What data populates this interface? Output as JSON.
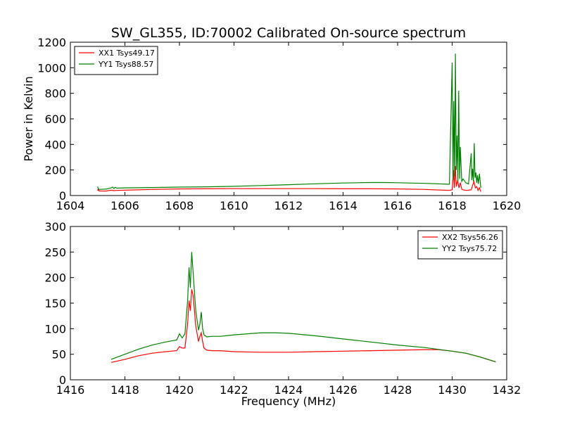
{
  "chart_data": [
    {
      "type": "line",
      "title": "SW_GL355, ID:70002 Calibrated On-source spectrum",
      "xlabel": "",
      "ylabel": "Power in Kelvin",
      "xlim": [
        1604,
        1620
      ],
      "ylim": [
        0,
        1200
      ],
      "xticks": [
        1604,
        1606,
        1608,
        1610,
        1612,
        1614,
        1616,
        1618,
        1620
      ],
      "yticks": [
        0,
        200,
        400,
        600,
        800,
        1000,
        1200
      ],
      "legend_position": "top-left",
      "grid": false,
      "series": [
        {
          "name": "XX1 Tsys49.17",
          "color": "#ff0000",
          "x": [
            1605.0,
            1605.02,
            1605.05,
            1605.3,
            1605.5,
            1605.6,
            1605.7,
            1606,
            1607,
            1608,
            1609,
            1610,
            1611,
            1612,
            1613,
            1614,
            1615,
            1616,
            1617,
            1617.9,
            1618.0,
            1618.05,
            1618.08,
            1618.12,
            1618.15,
            1618.2,
            1618.25,
            1618.3,
            1618.35,
            1618.4,
            1618.5,
            1618.6,
            1618.7,
            1618.75,
            1618.8,
            1618.85,
            1618.9,
            1618.95,
            1619.0,
            1619.05
          ],
          "y": [
            38,
            52,
            36,
            35,
            42,
            38,
            40,
            42,
            48,
            52,
            53,
            54,
            54,
            54,
            54,
            53,
            53,
            52,
            48,
            40,
            45,
            200,
            60,
            230,
            70,
            120,
            60,
            100,
            50,
            45,
            40,
            42,
            45,
            80,
            110,
            60,
            70,
            40,
            60,
            30
          ]
        },
        {
          "name": "YY1 Tsys88.57",
          "color": "#008000",
          "x": [
            1605.0,
            1605.02,
            1605.05,
            1605.3,
            1605.5,
            1605.55,
            1605.6,
            1605.65,
            1605.7,
            1606,
            1607,
            1608,
            1609,
            1610,
            1611,
            1612,
            1613,
            1614,
            1615,
            1615.5,
            1616,
            1617,
            1617.9,
            1618.0,
            1618.03,
            1618.06,
            1618.09,
            1618.12,
            1618.15,
            1618.18,
            1618.21,
            1618.24,
            1618.27,
            1618.3,
            1618.35,
            1618.4,
            1618.5,
            1618.6,
            1618.7,
            1618.72,
            1618.75,
            1618.78,
            1618.81,
            1618.84,
            1618.87,
            1618.9,
            1618.93,
            1618.96,
            1619.0,
            1619.05
          ],
          "y": [
            70,
            55,
            48,
            50,
            60,
            66,
            55,
            64,
            58,
            60,
            63,
            66,
            68,
            72,
            78,
            85,
            92,
            98,
            102,
            102,
            100,
            95,
            88,
            1040,
            120,
            740,
            150,
            1110,
            200,
            470,
            110,
            820,
            130,
            380,
            110,
            130,
            100,
            90,
            330,
            120,
            210,
            110,
            410,
            140,
            180,
            100,
            160,
            90,
            170,
            60
          ]
        }
      ]
    },
    {
      "type": "line",
      "title": "",
      "xlabel": "Frequency (MHz)",
      "ylabel": "",
      "xlim": [
        1416,
        1432
      ],
      "ylim": [
        0,
        300
      ],
      "xticks": [
        1416,
        1418,
        1420,
        1422,
        1424,
        1426,
        1428,
        1430,
        1432
      ],
      "yticks": [
        0,
        50,
        100,
        150,
        200,
        250,
        300
      ],
      "legend_position": "top-right",
      "grid": false,
      "series": [
        {
          "name": "XX2 Tsys56.26",
          "color": "#ff0000",
          "x": [
            1417.5,
            1418,
            1418.5,
            1419,
            1419.5,
            1419.9,
            1420.0,
            1420.1,
            1420.2,
            1420.3,
            1420.35,
            1420.4,
            1420.45,
            1420.5,
            1420.6,
            1420.7,
            1420.75,
            1420.8,
            1420.85,
            1420.9,
            1421,
            1421.2,
            1421.5,
            1422,
            1423,
            1424,
            1425,
            1426,
            1427,
            1428,
            1429,
            1429.5,
            1430,
            1430.5,
            1431,
            1431.6
          ],
          "y": [
            34,
            40,
            47,
            52,
            55,
            57,
            65,
            62,
            62,
            110,
            155,
            135,
            177,
            165,
            105,
            75,
            85,
            92,
            75,
            62,
            58,
            57,
            57,
            55,
            54,
            54,
            55,
            56,
            57,
            58,
            59,
            59,
            56,
            52,
            45,
            35
          ]
        },
        {
          "name": "YY2 Tsys75.72",
          "color": "#008000",
          "x": [
            1417.5,
            1418,
            1418.5,
            1419,
            1419.5,
            1419.9,
            1420.0,
            1420.1,
            1420.2,
            1420.3,
            1420.35,
            1420.4,
            1420.45,
            1420.5,
            1420.6,
            1420.7,
            1420.75,
            1420.8,
            1420.85,
            1420.9,
            1421,
            1421.2,
            1421.5,
            1422,
            1422.5,
            1423,
            1423.5,
            1424,
            1425,
            1426,
            1427,
            1428,
            1429,
            1430,
            1430.5,
            1431,
            1431.6
          ],
          "y": [
            40,
            50,
            60,
            68,
            74,
            78,
            90,
            82,
            90,
            155,
            220,
            180,
            250,
            210,
            135,
            97,
            110,
            133,
            100,
            88,
            84,
            85,
            85,
            88,
            90,
            92,
            92,
            91,
            86,
            80,
            74,
            68,
            63,
            56,
            52,
            45,
            35
          ]
        }
      ]
    }
  ]
}
